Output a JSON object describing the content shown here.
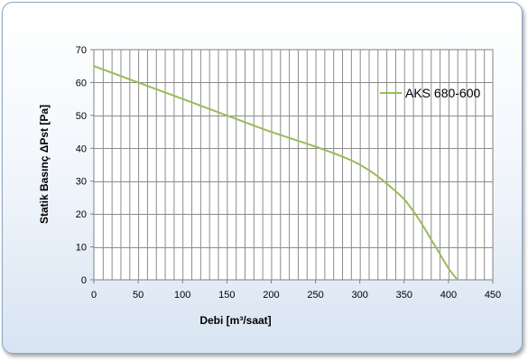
{
  "chart_data": {
    "type": "line",
    "title": "",
    "xlabel": "Debi [m³/saat]",
    "ylabel": "Statik Basınç ΔPst [Pa]",
    "xlim": [
      0,
      450
    ],
    "ylim": [
      0,
      70
    ],
    "x_ticks": [
      0,
      50,
      100,
      150,
      200,
      250,
      300,
      350,
      400,
      450
    ],
    "y_ticks": [
      0,
      10,
      20,
      30,
      40,
      50,
      60,
      70
    ],
    "x_minor_step": 10,
    "grid": true,
    "legend_position": "right",
    "series": [
      {
        "name": "AKS 680-600",
        "color": "#9bbb59",
        "x": [
          0,
          50,
          100,
          150,
          200,
          250,
          280,
          300,
          320,
          340,
          350,
          360,
          370,
          380,
          390,
          400,
          410
        ],
        "y": [
          65,
          60,
          55,
          50,
          45,
          40.5,
          37.5,
          35,
          31.5,
          27,
          24.5,
          21,
          17,
          12.5,
          8,
          3.5,
          0
        ]
      }
    ]
  }
}
